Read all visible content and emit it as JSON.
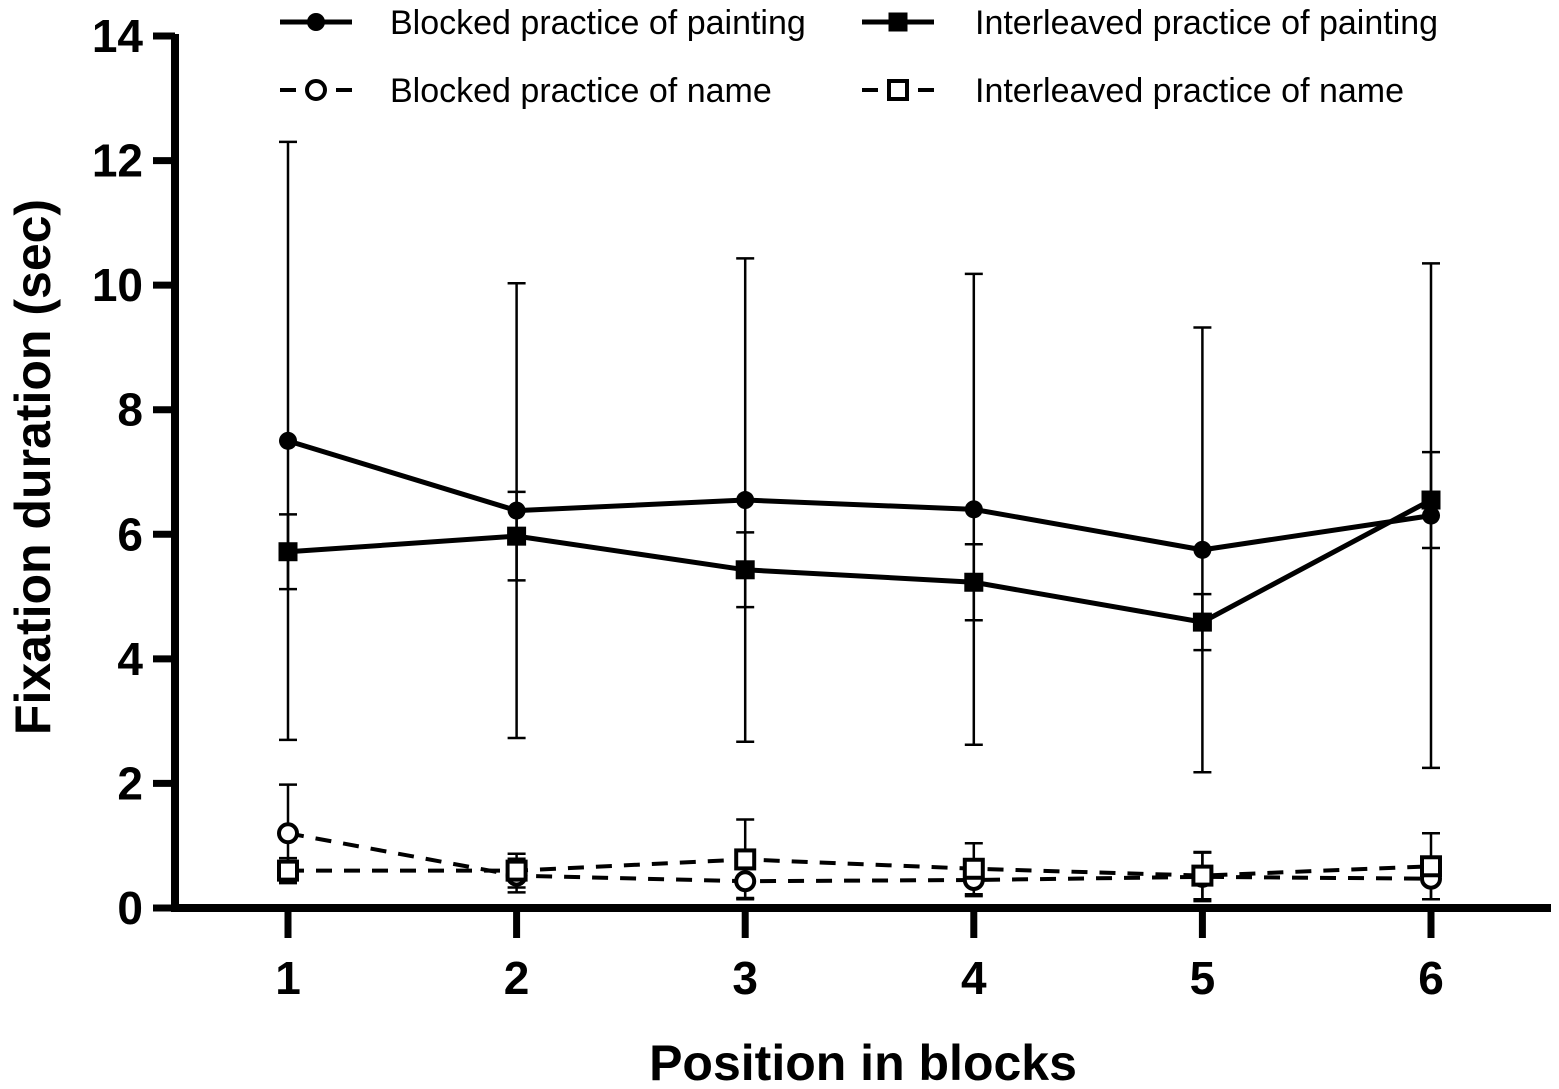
{
  "chart_data": {
    "type": "line",
    "title": "",
    "xlabel": "Position in blocks",
    "ylabel": "Fixation duration (sec)",
    "x": [
      1,
      2,
      3,
      4,
      5,
      6
    ],
    "x_tick_labels": [
      "1",
      "2",
      "3",
      "4",
      "5",
      "6"
    ],
    "ylim": [
      0,
      14
    ],
    "y_ticks": [
      0,
      2,
      4,
      6,
      8,
      10,
      12,
      14
    ],
    "y_tick_labels": [
      "0",
      "2",
      "4",
      "6",
      "8",
      "10",
      "12",
      "14"
    ],
    "grid": false,
    "legend_position": "top",
    "series": [
      {
        "name": "Blocked practice of painting",
        "marker": "circle-filled",
        "line": "solid",
        "values": [
          7.5,
          6.38,
          6.55,
          6.4,
          5.75,
          6.3
        ],
        "error": [
          4.8,
          3.65,
          3.88,
          3.78,
          3.57,
          4.05
        ]
      },
      {
        "name": "Interleaved practice of painting",
        "marker": "square-filled",
        "line": "solid",
        "values": [
          5.72,
          5.97,
          5.43,
          5.23,
          4.59,
          6.55
        ],
        "error": [
          0.6,
          0.71,
          0.6,
          0.61,
          0.45,
          0.77
        ]
      },
      {
        "name": "Blocked practice of name",
        "marker": "circle-open",
        "line": "dashed",
        "values": [
          1.2,
          0.52,
          0.43,
          0.45,
          0.5,
          0.47
        ],
        "error": [
          0.78,
          0.27,
          0.27,
          0.26,
          0.39,
          0.33
        ]
      },
      {
        "name": "Interleaved practice of name",
        "marker": "square-open",
        "line": "dashed",
        "values": [
          0.6,
          0.6,
          0.78,
          0.63,
          0.52,
          0.67
        ],
        "error": [
          0.2,
          0.27,
          0.64,
          0.41,
          0.38,
          0.53
        ]
      }
    ]
  }
}
